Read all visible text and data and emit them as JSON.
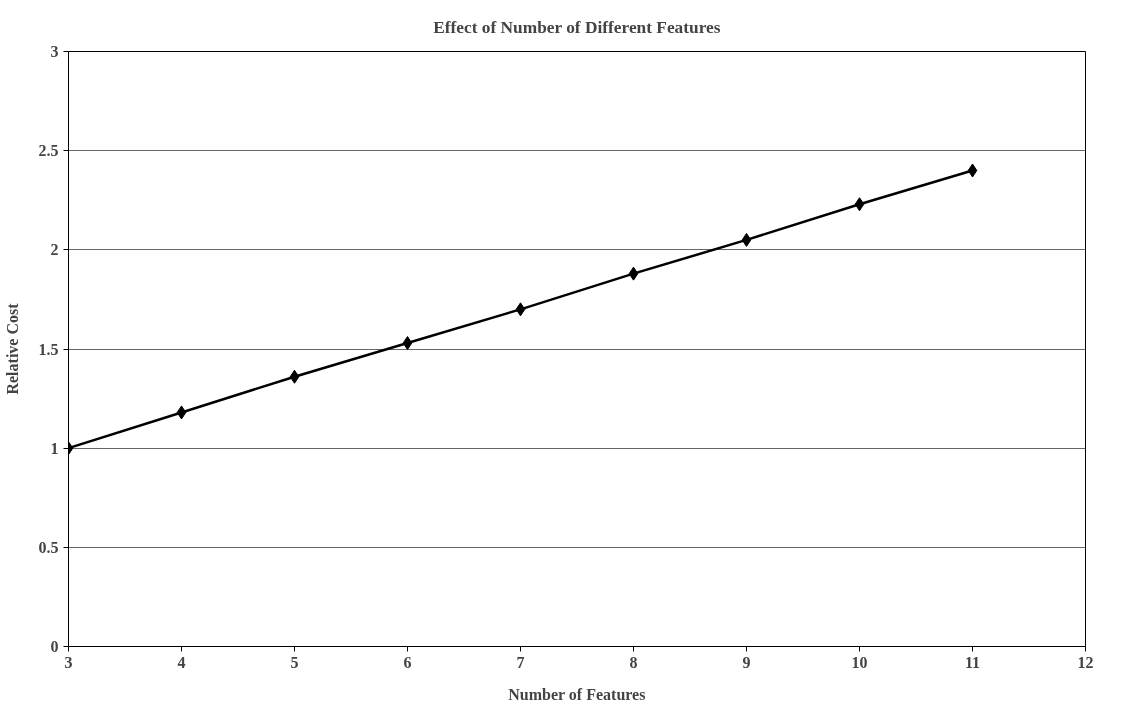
{
  "chart_data": {
    "type": "line",
    "title": "Effect of Number of Different Features",
    "xlabel": "Number of Features",
    "ylabel": "Relative Cost",
    "x": [
      3,
      4,
      5,
      6,
      7,
      8,
      9,
      10,
      11
    ],
    "series": [
      {
        "color": "#000000",
        "values": [
          1.0,
          1.18,
          1.36,
          1.53,
          1.7,
          1.88,
          2.05,
          2.23,
          2.4
        ]
      }
    ],
    "xlim": [
      3,
      12
    ],
    "xticks": [
      3,
      4,
      5,
      6,
      7,
      8,
      9,
      10,
      11,
      12
    ],
    "ylim": [
      0,
      3
    ],
    "yticks": [
      0,
      0.5,
      1,
      1.5,
      2,
      2.5,
      3
    ],
    "grid": "y",
    "marker": "diamond",
    "line_style": "solid"
  }
}
